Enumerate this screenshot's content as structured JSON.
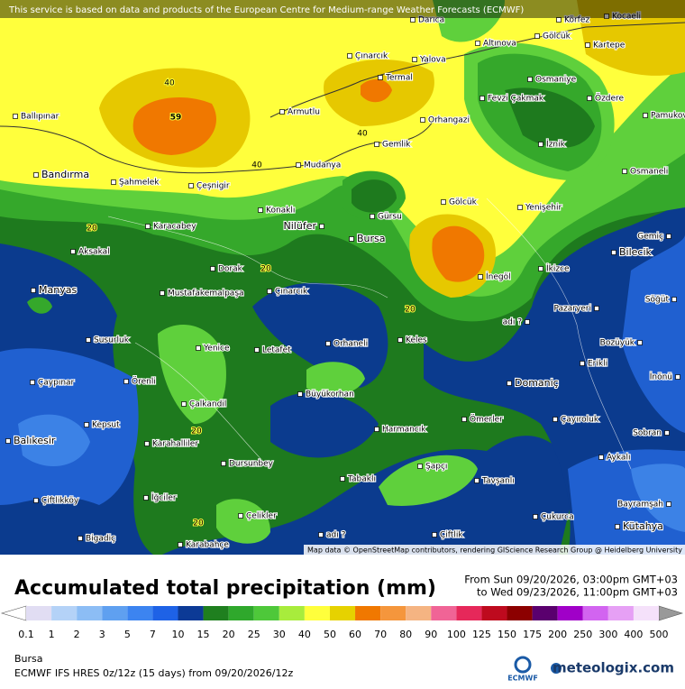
{
  "header": {
    "notice": "This service is based on data and products of the European Centre for Medium-range Weather Forecasts (ECMWF)"
  },
  "map": {
    "cities": [
      "Darıca",
      "Körfez",
      "Kocaeli",
      "Altınova",
      "Gölcük",
      "Kartepe",
      "Çınarcık",
      "Yalova",
      "Osmaniye",
      "Termal",
      "Ballıpınar",
      "Armutlu",
      "Fevzi Çakmak",
      "Özdere",
      "Pamukova",
      "Orhangazi",
      "Gemlik",
      "İznik",
      "Mudanya",
      "Osmaneli",
      "Bandırma",
      "Şahmelek",
      "Çeşnigir",
      "Konaklı",
      "Gölcük",
      "Yenişehir",
      "Gürsu",
      "Karacabey",
      "Nilüfer",
      "Bursa",
      "Gemiç",
      "Bilecik",
      "Aksakal",
      "Dorak",
      "İkizce",
      "İnegöl",
      "Manyas",
      "Mustafakemalpaşa",
      "Çınarcık",
      "Söğüt",
      "Pazaryeri",
      "adı ?",
      "Susurluk",
      "Orhaneli",
      "Keles",
      "Bozüyük",
      "Yenice",
      "Letafet",
      "Erikli",
      "İnönü",
      "Çaypınar",
      "Örenli",
      "Domaniç",
      "Büyükorhan",
      "Çalkandil",
      "Ömerler",
      "Çayıroluk",
      "Kepsut",
      "Harmancık",
      "Sobran",
      "Balıkesir",
      "Karahalliler",
      "Dursunbey",
      "Şapçı",
      "Aykalı",
      "Tabaklı",
      "Tavşanlı",
      "Çiftlikköy",
      "İğciler",
      "Bayramşah",
      "Çelikler",
      "Çukurca",
      "adı ?",
      "Çiftlik",
      "Kütahya",
      "Bigadiç",
      "Karabahçe"
    ],
    "contour_labels": [
      "40",
      "59",
      "40",
      "40",
      "20",
      "20",
      "20",
      "20",
      "20"
    ],
    "attribution": "Map data © OpenStreetMap contributors, rendering GIScience Research Group @ Heidelberg University"
  },
  "title": "Accumulated total precipitation (mm)",
  "period": {
    "from": "From Sun 09/20/2026, 03:00pm GMT+03",
    "to": "to Wed 09/23/2026, 11:00pm GMT+03"
  },
  "legend": {
    "labels": [
      0.1,
      1,
      2,
      3,
      5,
      7,
      10,
      15,
      20,
      25,
      30,
      40,
      50,
      60,
      70,
      80,
      90,
      100,
      125,
      150,
      175,
      200,
      250,
      300,
      400,
      500
    ]
  },
  "footer": {
    "location": "Bursa",
    "model": "ECMWF IFS HRES 0z/12z (15 days) from  09/20/2026/12z",
    "logo": "ECMWF",
    "brand": "meteologix.com"
  }
}
